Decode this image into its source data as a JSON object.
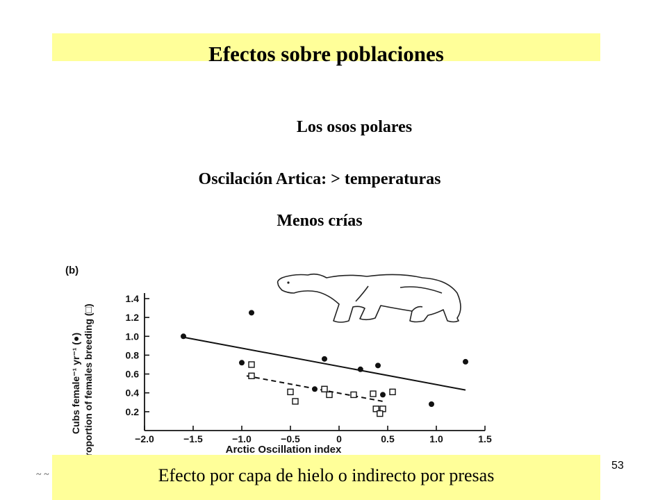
{
  "slide": {
    "title": "Efectos sobre poblaciones",
    "subtitle": "Los osos polares",
    "line2": "Oscilación Artica: > temperaturas",
    "line3": "Menos crías",
    "footer": "Efecto por capa de hielo o indirecto por presas",
    "page_number": "53",
    "corner_mark": "~ ~",
    "colors": {
      "band": "#ffff99",
      "text": "#000000"
    }
  },
  "chart_data": {
    "type": "scatter",
    "panel_label": "(b)",
    "xlabel": "Arctic Oscillation index",
    "ylabel_line1": "Cubs female⁻¹ yr⁻¹ (●)",
    "ylabel_line2": "Proportion of females breeding (□)",
    "xlim": [
      -2.0,
      1.5
    ],
    "ylim": [
      0.0,
      1.4
    ],
    "x_ticks": [
      -2.0,
      -1.5,
      -1.0,
      -0.5,
      0,
      0.5,
      1.0,
      1.5
    ],
    "x_tick_labels": [
      "−2.0",
      "−1.5",
      "−1.0",
      "−0.5",
      "0",
      "0.5",
      "1.0",
      "1.5"
    ],
    "y_ticks": [
      0.2,
      0.4,
      0.6,
      0.8,
      1.0,
      1.2,
      1.4
    ],
    "y_tick_labels": [
      "0.2",
      "0.4",
      "0.6",
      "0.8",
      "1.0",
      "1.2",
      "1.4"
    ],
    "series": [
      {
        "marker": "filled-circle",
        "points": [
          [
            -1.6,
            1.0
          ],
          [
            -0.9,
            1.25
          ],
          [
            -1.0,
            0.72
          ],
          [
            -0.15,
            0.76
          ],
          [
            0.22,
            0.65
          ],
          [
            0.4,
            0.69
          ],
          [
            -0.25,
            0.44
          ],
          [
            0.45,
            0.38
          ],
          [
            0.95,
            0.28
          ],
          [
            1.3,
            0.73
          ]
        ],
        "fit_line": [
          [
            -1.6,
            0.99
          ],
          [
            1.3,
            0.43
          ]
        ],
        "fit_style": "solid"
      },
      {
        "marker": "open-square",
        "points": [
          [
            -0.9,
            0.7
          ],
          [
            -0.9,
            0.58
          ],
          [
            -0.5,
            0.41
          ],
          [
            -0.45,
            0.31
          ],
          [
            -0.15,
            0.44
          ],
          [
            -0.1,
            0.38
          ],
          [
            0.15,
            0.38
          ],
          [
            0.35,
            0.39
          ],
          [
            0.55,
            0.41
          ],
          [
            0.38,
            0.23
          ],
          [
            0.45,
            0.23
          ],
          [
            0.42,
            0.18
          ]
        ],
        "fit_line": [
          [
            -0.95,
            0.58
          ],
          [
            0.45,
            0.31
          ]
        ],
        "fit_style": "dashed"
      }
    ]
  }
}
